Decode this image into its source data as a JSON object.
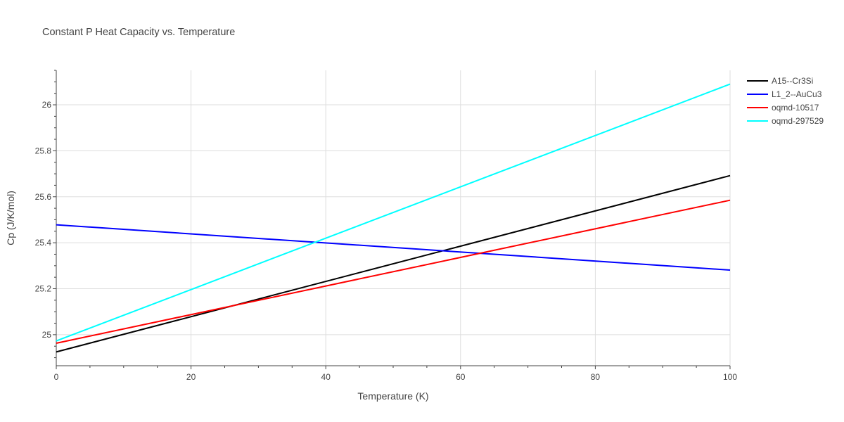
{
  "chart_data": {
    "type": "line",
    "title": "Constant P Heat Capacity vs. Temperature",
    "xlabel": "Temperature (K)",
    "ylabel": "Cp (J/K/mol)",
    "xlim": [
      0,
      100
    ],
    "ylim": [
      24.865,
      26.15
    ],
    "x_ticks": [
      0,
      20,
      40,
      60,
      80,
      100
    ],
    "y_ticks": [
      25,
      25.2,
      25.4,
      25.6,
      25.8,
      26
    ],
    "x_tick_labels": [
      "0",
      "20",
      "40",
      "60",
      "80",
      "100"
    ],
    "y_tick_labels": [
      "25",
      "25.2",
      "25.4",
      "25.6",
      "25.8",
      "26"
    ],
    "grid": true,
    "legend_position": "top-right",
    "series": [
      {
        "name": "A15--Cr3Si",
        "color": "#000000",
        "x": [
          0,
          100
        ],
        "y": [
          24.925,
          25.692
        ]
      },
      {
        "name": "L1_2--AuCu3",
        "color": "#0000ff",
        "x": [
          0,
          100
        ],
        "y": [
          25.478,
          25.281
        ]
      },
      {
        "name": "oqmd-10517",
        "color": "#ff0000",
        "x": [
          0,
          100
        ],
        "y": [
          24.963,
          25.585
        ]
      },
      {
        "name": "oqmd-297529",
        "color": "#00ffff",
        "x": [
          0,
          100
        ],
        "y": [
          24.973,
          26.09
        ]
      }
    ]
  }
}
